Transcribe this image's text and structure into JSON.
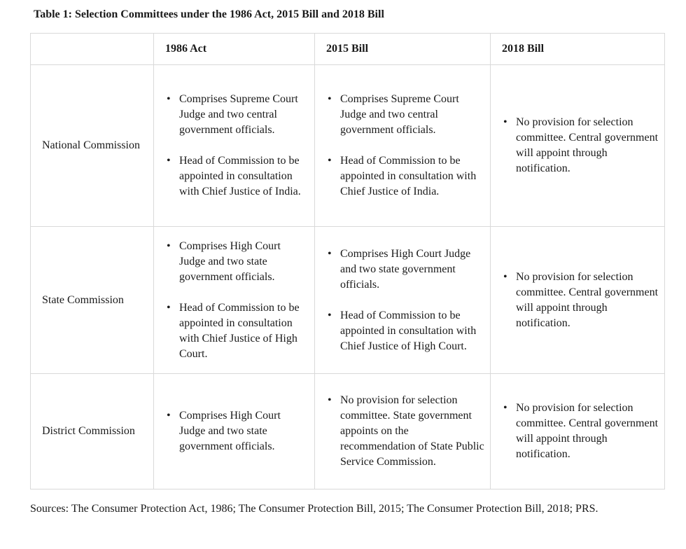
{
  "caption": "Table 1:  Selection Committees under the 1986 Act, 2015 Bill and 2018 Bill",
  "table": {
    "headers": [
      "",
      "1986 Act",
      "2015 Bill",
      "2018 Bill"
    ],
    "rows": [
      {
        "label": "National Commission",
        "act1986": [
          "Comprises Supreme Court Judge and two central government officials.",
          "Head of Commission to be appointed in consultation with Chief Justice of India."
        ],
        "bill2015": [
          "Comprises Supreme Court Judge and two central government officials.",
          "Head of Commission to be appointed in consultation with Chief Justice of India."
        ],
        "bill2018": [
          "No provision for selection committee.  Central government will appoint through notification."
        ]
      },
      {
        "label": "State Commission",
        "act1986": [
          "Comprises High Court Judge and two state government officials.",
          "Head of Commission to be appointed in consultation with Chief Justice of High Court."
        ],
        "bill2015": [
          "Comprises High Court Judge and two state government officials.",
          "Head of Commission to be appointed in consultation with Chief Justice of High Court."
        ],
        "bill2018": [
          "No provision for selection committee.  Central government will appoint through notification."
        ]
      },
      {
        "label": "District Commission",
        "act1986": [
          "Comprises High Court Judge and two state government officials."
        ],
        "bill2015": [
          "No provision for selection committee.  State government appoints on the recommendation of State Public Service Commission."
        ],
        "bill2018": [
          "No provision for selection committee.  Central government will appoint through notification."
        ]
      }
    ]
  },
  "sources": "Sources: The Consumer Protection Act, 1986; The Consumer Protection Bill, 2015; The Consumer Protection Bill, 2018; PRS."
}
